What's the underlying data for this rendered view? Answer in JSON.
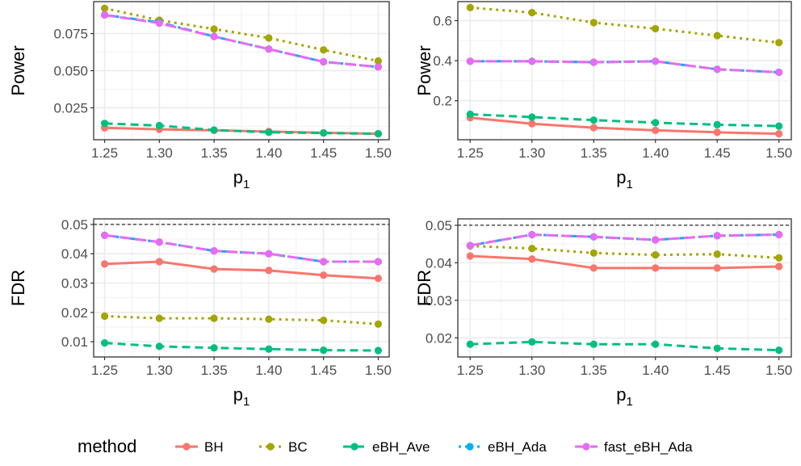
{
  "chart_data": [
    {
      "type": "line",
      "xlabel": "p",
      "xlabel_subscript": "1",
      "ylabel": "Power",
      "x": [
        1.25,
        1.3,
        1.35,
        1.4,
        1.45,
        1.5
      ],
      "x_tick_labels": [
        "1.25",
        "1.30",
        "1.35",
        "1.40",
        "1.45",
        "1.50"
      ],
      "xlim": [
        1.24,
        1.51
      ],
      "ylim": [
        0.0035,
        0.0965
      ],
      "y_ticks": [
        0.025,
        0.05,
        0.075
      ],
      "y_tick_labels": [
        "0.025",
        "0.050",
        "0.075"
      ],
      "grid": true,
      "series": [
        {
          "name": "BH",
          "values": [
            0.0115,
            0.0105,
            0.0098,
            0.009,
            0.0082,
            0.0075
          ]
        },
        {
          "name": "BC",
          "values": [
            0.092,
            0.084,
            0.078,
            0.072,
            0.064,
            0.0565
          ]
        },
        {
          "name": "eBH_Ave",
          "values": [
            0.0145,
            0.013,
            0.01,
            0.0085,
            0.008,
            0.0075
          ]
        },
        {
          "name": "eBH_Ada",
          "values": [
            0.0875,
            0.0825,
            0.073,
            0.0645,
            0.056,
            0.0525
          ]
        },
        {
          "name": "fast_eBH_Ada",
          "values": [
            0.0875,
            0.082,
            0.073,
            0.0645,
            0.056,
            0.0525
          ]
        }
      ]
    },
    {
      "type": "line",
      "xlabel": "p",
      "xlabel_subscript": "1",
      "ylabel": "Power",
      "x": [
        1.25,
        1.3,
        1.35,
        1.4,
        1.45,
        1.5
      ],
      "x_tick_labels": [
        "1.25",
        "1.30",
        "1.35",
        "1.40",
        "1.45",
        "1.50"
      ],
      "xlim": [
        1.24,
        1.51
      ],
      "ylim": [
        0.005,
        0.695
      ],
      "y_ticks": [
        0.2,
        0.4,
        0.6
      ],
      "y_tick_labels": [
        "0.2",
        "0.4",
        "0.6"
      ],
      "grid": true,
      "series": [
        {
          "name": "BH",
          "values": [
            0.115,
            0.085,
            0.065,
            0.052,
            0.042,
            0.035
          ]
        },
        {
          "name": "BC",
          "values": [
            0.665,
            0.64,
            0.59,
            0.56,
            0.525,
            0.49
          ]
        },
        {
          "name": "eBH_Ave",
          "values": [
            0.132,
            0.118,
            0.103,
            0.09,
            0.08,
            0.073
          ]
        },
        {
          "name": "eBH_Ada",
          "values": [
            0.397,
            0.397,
            0.392,
            0.397,
            0.357,
            0.342
          ]
        },
        {
          "name": "fast_eBH_Ada",
          "values": [
            0.397,
            0.397,
            0.392,
            0.397,
            0.357,
            0.342
          ]
        }
      ]
    },
    {
      "type": "line",
      "xlabel": "p",
      "xlabel_subscript": "1",
      "ylabel": "FDR",
      "x": [
        1.25,
        1.3,
        1.35,
        1.4,
        1.45,
        1.5
      ],
      "x_tick_labels": [
        "1.25",
        "1.30",
        "1.35",
        "1.40",
        "1.45",
        "1.50"
      ],
      "xlim": [
        1.24,
        1.51
      ],
      "ylim": [
        0.0048,
        0.0519
      ],
      "y_ticks": [
        0.01,
        0.02,
        0.03,
        0.04,
        0.05
      ],
      "y_tick_labels": [
        "0.01",
        "0.02",
        "0.03",
        "0.04",
        "0.05"
      ],
      "grid": true,
      "reference_line": 0.05,
      "series": [
        {
          "name": "BH",
          "values": [
            0.0365,
            0.0373,
            0.0348,
            0.0343,
            0.0327,
            0.0316
          ]
        },
        {
          "name": "BC",
          "values": [
            0.0187,
            0.018,
            0.018,
            0.0177,
            0.0173,
            0.016
          ]
        },
        {
          "name": "eBH_Ave",
          "values": [
            0.0096,
            0.0084,
            0.0079,
            0.0075,
            0.0071,
            0.007
          ]
        },
        {
          "name": "eBH_Ada",
          "values": [
            0.0463,
            0.044,
            0.041,
            0.04,
            0.0373,
            0.0373
          ]
        },
        {
          "name": "fast_eBH_Ada",
          "values": [
            0.0463,
            0.044,
            0.041,
            0.04,
            0.0373,
            0.0373
          ]
        }
      ]
    },
    {
      "type": "line",
      "xlabel": "p",
      "xlabel_subscript": "1",
      "ylabel": "FDR",
      "x": [
        1.25,
        1.3,
        1.35,
        1.4,
        1.45,
        1.5
      ],
      "x_tick_labels": [
        "1.25",
        "1.30",
        "1.35",
        "1.40",
        "1.45",
        "1.50"
      ],
      "xlim": [
        1.24,
        1.51
      ],
      "ylim": [
        0.0149,
        0.0517
      ],
      "y_ticks": [
        0.02,
        0.03,
        0.04,
        0.05
      ],
      "y_tick_labels": [
        "0.02",
        "0.03",
        "0.04",
        "0.05"
      ],
      "grid": true,
      "reference_line": 0.05,
      "series": [
        {
          "name": "BH",
          "values": [
            0.0418,
            0.041,
            0.0386,
            0.0386,
            0.0386,
            0.039
          ]
        },
        {
          "name": "BC",
          "values": [
            0.0445,
            0.0438,
            0.0426,
            0.0421,
            0.0423,
            0.0413
          ]
        },
        {
          "name": "eBH_Ave",
          "values": [
            0.0183,
            0.0189,
            0.0183,
            0.0183,
            0.0172,
            0.0167
          ]
        },
        {
          "name": "eBH_Ada",
          "values": [
            0.0446,
            0.0475,
            0.0469,
            0.0461,
            0.0472,
            0.0475
          ]
        },
        {
          "name": "fast_eBH_Ada",
          "values": [
            0.0446,
            0.0475,
            0.0469,
            0.0461,
            0.0472,
            0.0475
          ]
        }
      ]
    }
  ],
  "legend": {
    "title": "method",
    "placement": "bottom",
    "entries": [
      {
        "name": "BH",
        "color": "#F8766D",
        "dash": "solid"
      },
      {
        "name": "BC",
        "color": "#A3A500",
        "dash": "dotted"
      },
      {
        "name": "eBH_Ave",
        "color": "#00BF7D",
        "dash": "dashed"
      },
      {
        "name": "eBH_Ada",
        "color": "#00B0F6",
        "dash": "dotdash"
      },
      {
        "name": "fast_eBH_Ada",
        "color": "#E76BF3",
        "dash": "longdash"
      }
    ]
  }
}
